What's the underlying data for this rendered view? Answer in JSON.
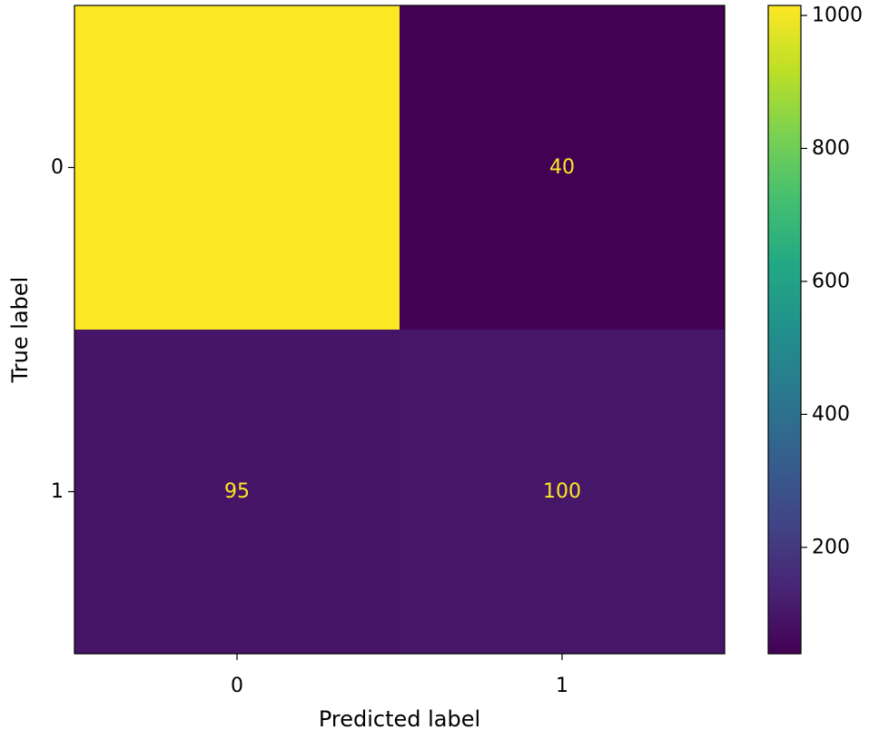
{
  "chart_data": {
    "type": "heatmap",
    "xlabel": "Predicted label",
    "ylabel": "True label",
    "x_categories": [
      "0",
      "1"
    ],
    "y_categories": [
      "0",
      "1"
    ],
    "matrix": [
      [
        1015,
        40
      ],
      [
        95,
        100
      ]
    ],
    "colormap": "viridis",
    "cell_text_color": "#fde725",
    "colorbar": {
      "range": [
        40,
        1015
      ],
      "ticks": [
        200,
        400,
        600,
        800,
        1000
      ]
    }
  }
}
